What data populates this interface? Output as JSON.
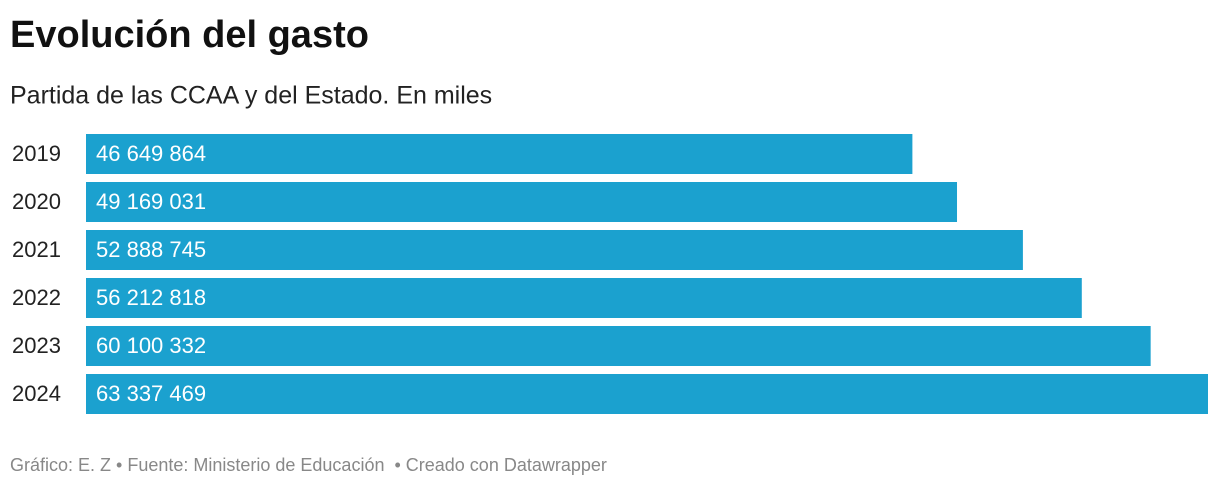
{
  "chart_data": {
    "type": "bar",
    "orientation": "horizontal",
    "title": "Evolución del gasto",
    "subtitle": "Partida de las CCAA y del Estado. En miles",
    "categories": [
      "2019",
      "2020",
      "2021",
      "2022",
      "2023",
      "2024"
    ],
    "values": [
      46649864,
      49169031,
      52888745,
      56212818,
      60100332,
      63337469
    ],
    "value_labels": [
      "46 649 864",
      "49 169 031",
      "52 888 745",
      "56 212 818",
      "60 100 332",
      "63 337 469"
    ],
    "color": "#1ba1cf",
    "footer": "Gráfico: E. Z • Fuente: Ministerio de Educación  • Creado con Datawrapper"
  }
}
